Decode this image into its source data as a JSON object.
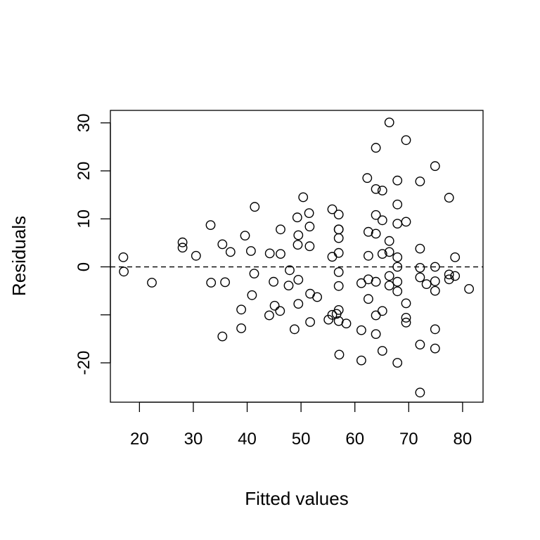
{
  "chart_data": {
    "type": "scatter",
    "xlabel": "Fitted values",
    "ylabel": "Residuals",
    "xlim": [
      14.6,
      83.8
    ],
    "ylim": [
      -28.2,
      32.6
    ],
    "xticks": [
      20,
      30,
      40,
      50,
      60,
      70,
      80
    ],
    "yticks": [
      -20,
      -10,
      0,
      10,
      20,
      30
    ],
    "ytick_labels": [
      "-20",
      "",
      "0",
      "10",
      "20",
      "30"
    ],
    "reference_line": {
      "y": 0,
      "style": "dashed"
    },
    "grid": false,
    "points": [
      [
        17.0,
        2.0
      ],
      [
        17.1,
        -1.0
      ],
      [
        22.3,
        -3.3
      ],
      [
        28.0,
        5.1
      ],
      [
        28.0,
        4.0
      ],
      [
        30.5,
        2.3
      ],
      [
        33.2,
        8.7
      ],
      [
        33.3,
        -3.3
      ],
      [
        35.4,
        4.7
      ],
      [
        35.9,
        -3.2
      ],
      [
        35.4,
        -14.5
      ],
      [
        36.9,
        3.1
      ],
      [
        38.9,
        -8.9
      ],
      [
        38.9,
        -12.8
      ],
      [
        39.6,
        6.5
      ],
      [
        40.7,
        3.3
      ],
      [
        40.9,
        -5.9
      ],
      [
        41.3,
        -1.4
      ],
      [
        41.4,
        12.5
      ],
      [
        44.2,
        2.8
      ],
      [
        44.1,
        -10.1
      ],
      [
        44.9,
        -3.1
      ],
      [
        45.1,
        -8.1
      ],
      [
        46.1,
        -9.2
      ],
      [
        46.2,
        2.7
      ],
      [
        46.2,
        7.8
      ],
      [
        47.7,
        -3.9
      ],
      [
        47.9,
        -0.7
      ],
      [
        48.8,
        -13.0
      ],
      [
        49.3,
        10.3
      ],
      [
        49.4,
        4.6
      ],
      [
        49.5,
        -2.7
      ],
      [
        49.5,
        6.6
      ],
      [
        49.5,
        -7.7
      ],
      [
        50.4,
        14.5
      ],
      [
        51.5,
        11.2
      ],
      [
        51.6,
        8.4
      ],
      [
        51.6,
        4.3
      ],
      [
        51.7,
        -5.6
      ],
      [
        51.7,
        -11.5
      ],
      [
        53.0,
        -6.3
      ],
      [
        55.1,
        -11.0
      ],
      [
        55.8,
        12.0
      ],
      [
        55.8,
        2.1
      ],
      [
        55.8,
        -10.0
      ],
      [
        56.6,
        -9.8
      ],
      [
        57.0,
        10.9
      ],
      [
        57.0,
        7.8
      ],
      [
        57.0,
        7.8
      ],
      [
        57.0,
        6.0
      ],
      [
        57.0,
        2.9
      ],
      [
        57.0,
        -1.1
      ],
      [
        57.0,
        -4.0
      ],
      [
        57.0,
        -9.0
      ],
      [
        57.0,
        -11.3
      ],
      [
        57.1,
        -18.3
      ],
      [
        58.4,
        -11.8
      ],
      [
        61.2,
        -3.4
      ],
      [
        61.2,
        -13.2
      ],
      [
        61.2,
        -19.5
      ],
      [
        62.3,
        18.5
      ],
      [
        62.5,
        7.3
      ],
      [
        62.5,
        2.3
      ],
      [
        62.5,
        -2.6
      ],
      [
        62.5,
        -6.7
      ],
      [
        63.9,
        24.8
      ],
      [
        63.9,
        16.2
      ],
      [
        63.9,
        10.8
      ],
      [
        63.9,
        6.9
      ],
      [
        63.9,
        -3.1
      ],
      [
        63.9,
        -10.1
      ],
      [
        63.9,
        -14.0
      ],
      [
        65.1,
        15.9
      ],
      [
        65.1,
        9.7
      ],
      [
        65.1,
        2.7
      ],
      [
        65.1,
        -9.2
      ],
      [
        65.1,
        -17.5
      ],
      [
        66.4,
        30.1
      ],
      [
        66.4,
        5.4
      ],
      [
        66.4,
        3.1
      ],
      [
        66.4,
        -1.9
      ],
      [
        66.4,
        -3.9
      ],
      [
        67.9,
        18.0
      ],
      [
        67.9,
        13.0
      ],
      [
        67.9,
        9.0
      ],
      [
        67.9,
        2.0
      ],
      [
        67.9,
        0.0
      ],
      [
        67.9,
        -3.1
      ],
      [
        67.9,
        -5.1
      ],
      [
        67.9,
        -20.0
      ],
      [
        69.5,
        26.4
      ],
      [
        69.5,
        9.4
      ],
      [
        69.5,
        -7.6
      ],
      [
        69.5,
        -10.6
      ],
      [
        69.5,
        -11.6
      ],
      [
        72.1,
        17.8
      ],
      [
        72.1,
        3.8
      ],
      [
        72.1,
        -0.2
      ],
      [
        72.1,
        -2.2
      ],
      [
        72.1,
        -16.2
      ],
      [
        72.1,
        -26.2
      ],
      [
        73.3,
        -3.6
      ],
      [
        74.9,
        21.0
      ],
      [
        74.9,
        0.0
      ],
      [
        74.9,
        -3.0
      ],
      [
        74.9,
        -5.0
      ],
      [
        74.9,
        -13.0
      ],
      [
        74.9,
        -17.0
      ],
      [
        77.5,
        14.4
      ],
      [
        77.5,
        -1.6
      ],
      [
        77.5,
        -2.6
      ],
      [
        78.6,
        2.0
      ],
      [
        78.6,
        -1.9
      ],
      [
        81.2,
        -4.6
      ]
    ]
  }
}
